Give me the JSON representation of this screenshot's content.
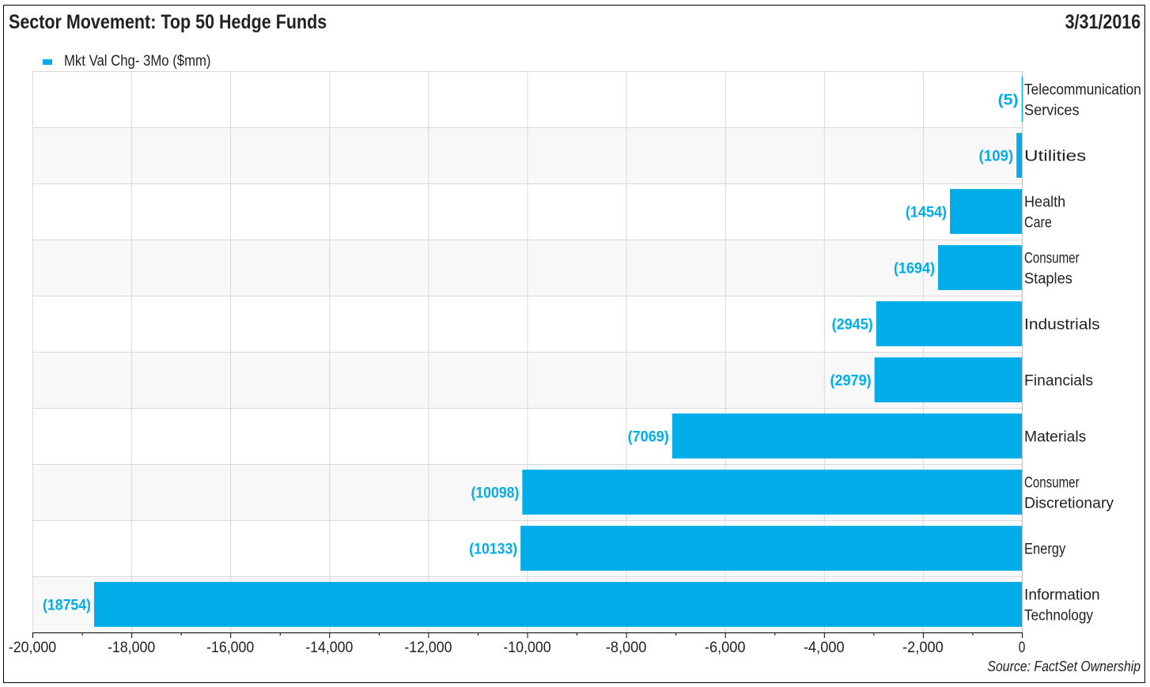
{
  "title": "Sector Movement: Top 50 Hedge Funds",
  "date": "3/31/2016",
  "source": "Source: FactSet Ownership",
  "chart_data": {
    "type": "bar",
    "orientation": "horizontal",
    "title": "Sector Movement: Top 50 Hedge Funds",
    "xlabel": "",
    "ylabel": "",
    "xlim": [
      -20000,
      0
    ],
    "grid": true,
    "legend_position": "top-left",
    "series": [
      {
        "name": "Mkt Val Chg- 3Mo ($mm)",
        "color": "#00ade8",
        "values": [
          -5,
          -109,
          -1454,
          -1694,
          -2945,
          -2979,
          -7069,
          -10098,
          -10133,
          -18754
        ]
      }
    ],
    "categories": [
      [
        "Telecommunication",
        "Services"
      ],
      [
        "Utilities"
      ],
      [
        "Health",
        "Care"
      ],
      [
        "Consumer",
        "Staples"
      ],
      [
        "Industrials"
      ],
      [
        "Financials"
      ],
      [
        "Materials"
      ],
      [
        "Consumer",
        "Discretionary"
      ],
      [
        "Energy"
      ],
      [
        "Information",
        "Technology"
      ]
    ],
    "data_labels": [
      "(5)",
      "(109)",
      "(1454)",
      "(1694)",
      "(2945)",
      "(2979)",
      "(7069)",
      "(10098)",
      "(10133)",
      "(18754)"
    ],
    "x_ticks": [
      -20000,
      -18000,
      -16000,
      -14000,
      -12000,
      -10000,
      -8000,
      -6000,
      -4000,
      -2000,
      0
    ],
    "x_tick_labels": [
      "-20,000",
      "-18,000",
      "-16,000",
      "-14,000",
      "-12,000",
      "-10,000",
      "-8,000",
      "-6,000",
      "-4,000",
      "-2,000",
      "0"
    ]
  }
}
